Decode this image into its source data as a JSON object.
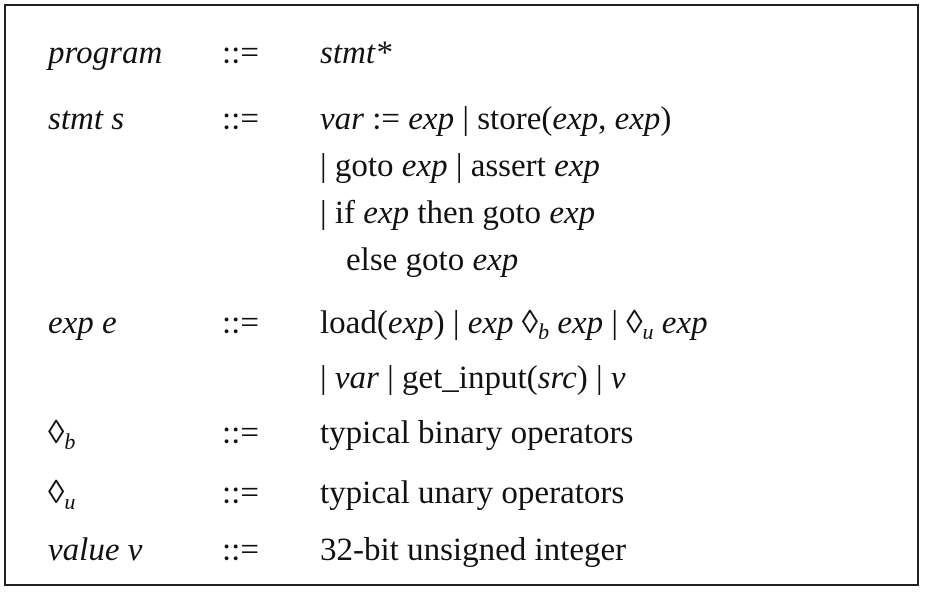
{
  "grammar": {
    "program": {
      "lhs": "program",
      "def": "::=",
      "rhs": "stmt*"
    },
    "stmt": {
      "lhs_word": "stmt",
      "lhs_var": "s",
      "def": "::=",
      "line1": {
        "var": "var",
        "assign": ":=",
        "exp": "exp",
        "bar": "|",
        "store": "store(",
        "exp_a": "exp",
        "comma": ",",
        "exp_b": "exp",
        "close": ")"
      },
      "line2": {
        "bar1": "|",
        "goto": "goto",
        "exp1": "exp",
        "bar2": "|",
        "assert": "assert",
        "exp2": "exp"
      },
      "line3": {
        "bar": "|",
        "if": "if",
        "exp1": "exp",
        "then_goto": "then goto",
        "exp2": "exp"
      },
      "line4": {
        "else_goto": "else goto",
        "exp": "exp"
      }
    },
    "exp": {
      "lhs_word": "exp",
      "lhs_var": "e",
      "def": "::=",
      "line1": {
        "load": "load(",
        "exp1": "exp",
        "close": ")",
        "bar1": "|",
        "exp2": "exp",
        "diamond_b": "◊",
        "sub_b": "b",
        "exp3": "exp",
        "bar2": "|",
        "diamond_u": "◊",
        "sub_u": "u",
        "exp4": "exp"
      },
      "line2": {
        "bar1": "|",
        "var": "var",
        "bar2": "|",
        "get_input": "get_input(",
        "src": "src",
        "close": ")",
        "bar3": "|",
        "v": "v"
      }
    },
    "binop": {
      "diamond": "◊",
      "sub": "b",
      "def": "::=",
      "rhs": "typical binary operators"
    },
    "unop": {
      "diamond": "◊",
      "sub": "u",
      "def": "::=",
      "rhs": "typical unary operators"
    },
    "value": {
      "lhs_word": "value",
      "lhs_var": "v",
      "def": "::=",
      "rhs": "32-bit unsigned integer"
    }
  }
}
